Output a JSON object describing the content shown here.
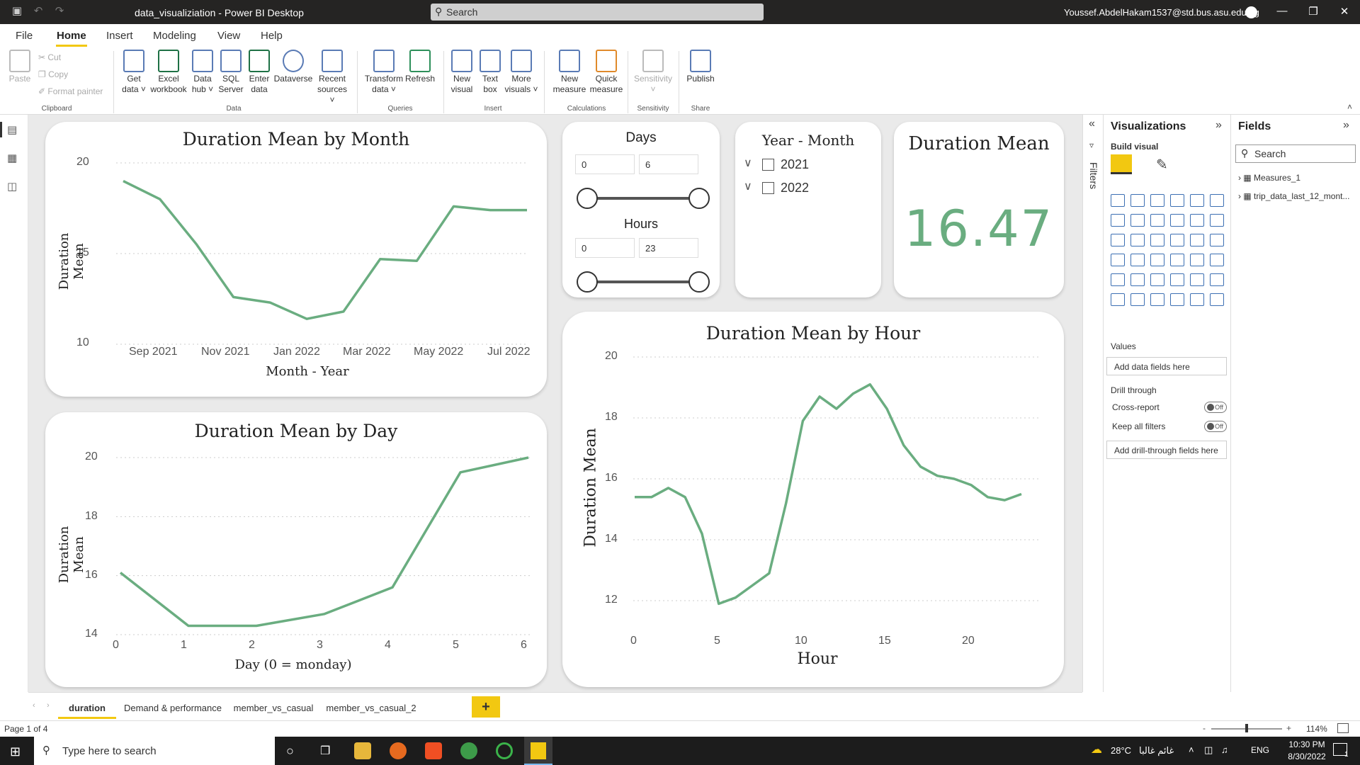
{
  "window": {
    "title": "data_visualiziation - Power BI Desktop",
    "search": "Search",
    "user": "Youssef.AbdelHakam1537@std.bus.asu.edu.eg"
  },
  "menu": [
    "File",
    "Home",
    "Insert",
    "Modeling",
    "View",
    "Help"
  ],
  "ribbon": {
    "clipboard": {
      "paste": "Paste",
      "cut": "Cut",
      "copy": "Copy",
      "format_painter": "Format painter",
      "group": "Clipboard"
    },
    "data": {
      "get_data": "Get data",
      "excel": "Excel workbook",
      "data_hub": "Data hub",
      "sql": "SQL Server",
      "enter": "Enter data",
      "dataverse": "Dataverse",
      "recent": "Recent sources",
      "group": "Data"
    },
    "queries": {
      "transform": "Transform data",
      "refresh": "Refresh",
      "group": "Queries"
    },
    "insert": {
      "new_visual": "New visual",
      "text_box": "Text box",
      "more_visuals": "More visuals",
      "group": "Insert"
    },
    "calculations": {
      "new_measure": "New measure",
      "quick_measure": "Quick measure",
      "group": "Calculations"
    },
    "sensitivity": {
      "label": "Sensitivity",
      "group": "Sensitivity"
    },
    "share": {
      "publish": "Publish",
      "group": "Share"
    }
  },
  "visuals": {
    "month": {
      "title": "Duration Mean by Month",
      "xlabel": "Month - Year",
      "ylabel": "Duration Mean",
      "yticks": [
        "20",
        "15",
        "10"
      ],
      "xticks": [
        "Sep 2021",
        "Nov 2021",
        "Jan 2022",
        "Mar 2022",
        "May 2022",
        "Jul 2022"
      ]
    },
    "day": {
      "title": "Duration Mean by Day",
      "xlabel": "Day (0 = monday)",
      "ylabel": "Duration Mean",
      "yticks": [
        "20",
        "18",
        "16",
        "14"
      ],
      "xticks": [
        "0",
        "1",
        "2",
        "3",
        "4",
        "5",
        "6"
      ]
    },
    "hour": {
      "title": "Duration Mean by Hour",
      "xlabel": "Hour",
      "ylabel": "Duration Mean",
      "yticks": [
        "20",
        "18",
        "16",
        "14",
        "12"
      ],
      "xticks": [
        "0",
        "5",
        "10",
        "15",
        "20"
      ]
    },
    "days_slicer": {
      "title": "Days",
      "min": "0",
      "max": "6"
    },
    "hours_slicer": {
      "title": "Hours",
      "min": "0",
      "max": "23"
    },
    "ym_slicer": {
      "title": "Year - Month",
      "items": [
        "2021",
        "2022"
      ]
    },
    "card": {
      "title": "Duration Mean",
      "value": "16.47"
    }
  },
  "chart_data": [
    {
      "type": "line",
      "title": "Duration Mean by Month",
      "xlabel": "Month - Year",
      "ylabel": "Duration Mean",
      "x": [
        "Aug 2021",
        "Sep 2021",
        "Oct 2021",
        "Nov 2021",
        "Dec 2021",
        "Jan 2022",
        "Feb 2022",
        "Mar 2022",
        "Apr 2022",
        "May 2022",
        "Jun 2022",
        "Jul 2022"
      ],
      "values": [
        19.0,
        18.0,
        15.5,
        12.6,
        12.3,
        11.4,
        11.8,
        14.7,
        14.6,
        17.6,
        17.4,
        17.4
      ],
      "ylim": [
        10,
        20
      ]
    },
    {
      "type": "line",
      "title": "Duration Mean by Day",
      "xlabel": "Day (0 = monday)",
      "ylabel": "Duration Mean",
      "x": [
        0,
        1,
        2,
        3,
        4,
        5,
        6
      ],
      "values": [
        16.1,
        14.3,
        14.3,
        14.7,
        15.6,
        19.5,
        20.0
      ],
      "ylim": [
        14,
        20
      ]
    },
    {
      "type": "line",
      "title": "Duration Mean by Hour",
      "xlabel": "Hour",
      "ylabel": "Duration Mean",
      "x": [
        0,
        1,
        2,
        3,
        4,
        5,
        6,
        7,
        8,
        9,
        10,
        11,
        12,
        13,
        14,
        15,
        16,
        17,
        18,
        19,
        20,
        21,
        22,
        23
      ],
      "values": [
        15.4,
        15.4,
        15.7,
        15.4,
        14.2,
        11.9,
        12.1,
        12.5,
        12.9,
        15.2,
        17.9,
        18.7,
        18.3,
        18.8,
        19.1,
        18.3,
        17.1,
        16.4,
        16.1,
        16.0,
        15.8,
        15.4,
        15.3,
        15.5
      ],
      "ylim": [
        12,
        20
      ]
    }
  ],
  "viz_pane": {
    "title": "Visualizations",
    "build": "Build visual",
    "values": "Values",
    "add_fields": "Add data fields here",
    "drill": "Drill through",
    "cross": "Cross-report",
    "keep": "Keep all filters",
    "off": "Off",
    "add_drill": "Add drill-through fields here"
  },
  "filters_label": "Filters",
  "fields_pane": {
    "title": "Fields",
    "search": "Search",
    "tables": [
      "Measures_1",
      "trip_data_last_12_mont..."
    ]
  },
  "tabs": [
    "duration",
    "Demand & performance",
    "member_vs_casual",
    "member_vs_casual_2"
  ],
  "status": {
    "page": "Page 1 of 4",
    "zoom": "114%"
  },
  "taskbar": {
    "search": "Type here to search",
    "weather": "28°C",
    "weather_text": "غائم غالبا",
    "lang": "ENG",
    "time": "10:30 PM",
    "date": "8/30/2022",
    "notif": "1"
  }
}
